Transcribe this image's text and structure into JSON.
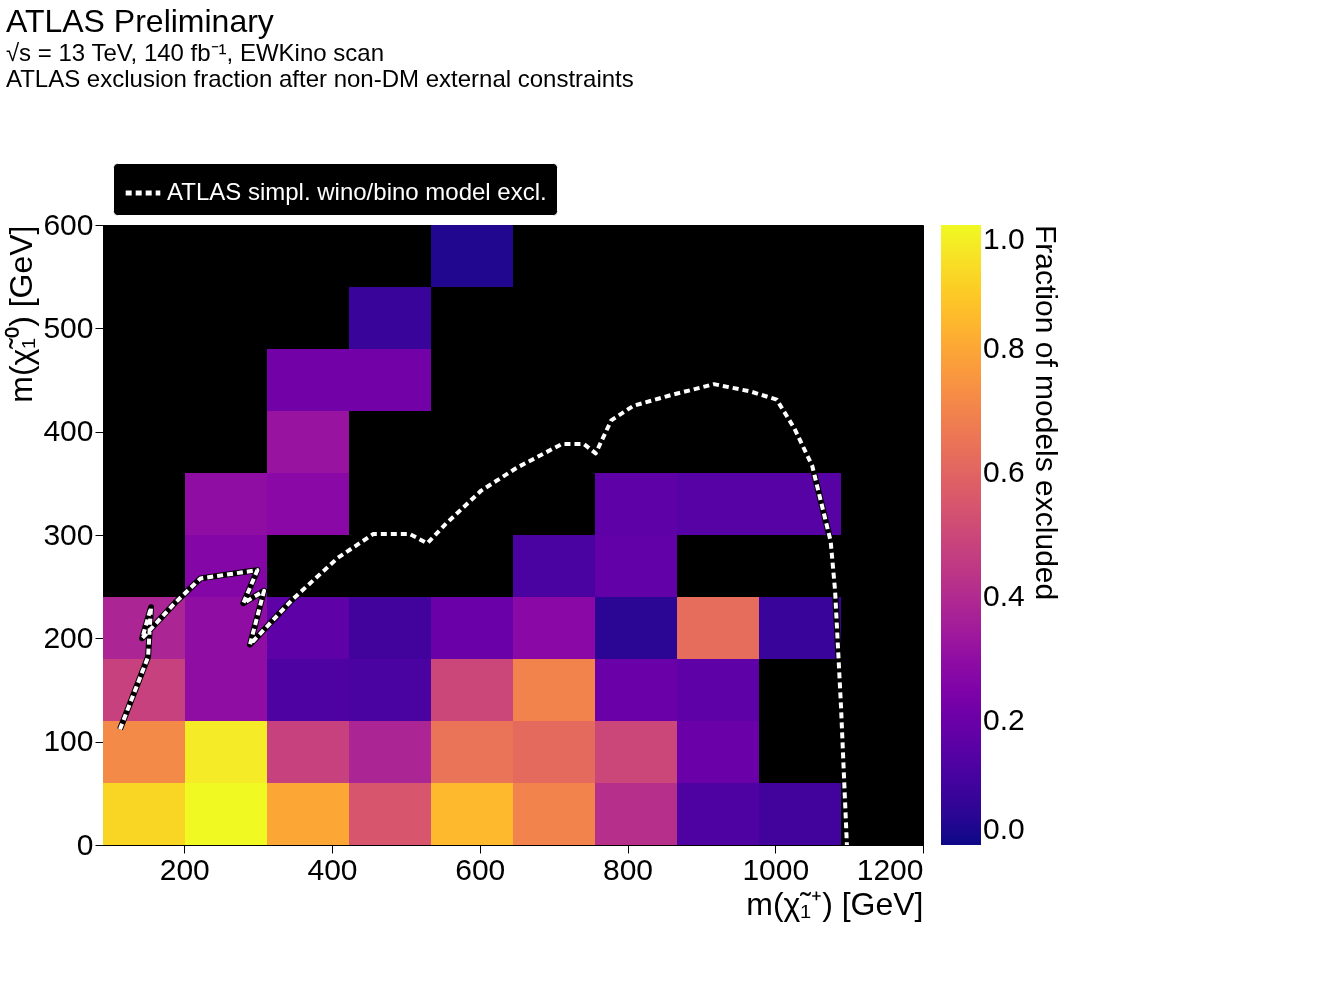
{
  "chart_data": {
    "type": "heatmap",
    "title": "ATLAS Preliminary",
    "subtitle": "√s = 13 TeV, 140 fb⁻¹, EWKino scan",
    "annotations": [
      "ATLAS exclusion fraction after non-DM external constraints"
    ],
    "xlabel": "m(χ̃₁⁺) [GeV]",
    "ylabel": "m(χ̃₁⁰) [GeV]",
    "clabel": "Fraction of models excluded",
    "xlim": [
      90,
      1200
    ],
    "xticks": [
      200,
      400,
      600,
      800,
      1000,
      1200
    ],
    "ylim": [
      0,
      600
    ],
    "yticks": [
      0,
      100,
      200,
      300,
      400,
      500,
      600
    ],
    "clim": [
      0,
      1
    ],
    "cticks": [
      {
        "value": 0,
        "label": "0.0"
      },
      0.2,
      0.4,
      0.6,
      0.8,
      {
        "value": 1,
        "label": "1.0"
      }
    ],
    "cells": [
      [
        null,
        null,
        null,
        null,
        0.03,
        null,
        null,
        null,
        null,
        null
      ],
      [
        null,
        null,
        null,
        0.08,
        null,
        null,
        null,
        null,
        null,
        null
      ],
      [
        null,
        null,
        0.22,
        0.22,
        null,
        null,
        null,
        null,
        null,
        null
      ],
      [
        null,
        null,
        0.32,
        null,
        null,
        null,
        null,
        null,
        null,
        null
      ],
      [
        null,
        0.3,
        0.28,
        null,
        null,
        null,
        0.17,
        0.15,
        0.15,
        null
      ],
      [
        null,
        0.27,
        null,
        null,
        null,
        0.12,
        0.18,
        null,
        null,
        null
      ],
      [
        0.38,
        0.3,
        0.17,
        0.1,
        0.2,
        0.28,
        0.05,
        0.63,
        0.08,
        null
      ],
      [
        0.48,
        0.3,
        0.13,
        0.12,
        0.5,
        0.7,
        0.2,
        0.17,
        null,
        null
      ],
      [
        0.72,
        0.97,
        0.48,
        0.38,
        0.65,
        0.62,
        0.5,
        0.2,
        null,
        null
      ],
      [
        0.92,
        1.0,
        0.8,
        0.55,
        0.85,
        0.7,
        0.42,
        0.13,
        0.1,
        null
      ]
    ],
    "series": [
      {
        "name": "ATLAS simpl. wino/bino model excl.",
        "type": "line",
        "color": "#ffffff",
        "line_style": "dashed",
        "x": [
          113,
          151,
          155,
          143,
          187,
          222,
          299,
          280,
          308,
          289,
          347,
          408,
          456,
          505,
          529,
          553,
          602,
          650,
          711,
          741,
          757,
          778,
          808,
          857,
          917,
          966,
          1002,
          1026,
          1050,
          1075,
          1081,
          1089,
          1097
        ],
        "values": [
          112,
          182,
          230,
          200,
          234,
          258,
          266,
          234,
          246,
          194,
          238,
          278,
          301,
          301,
          292,
          310,
          343,
          365,
          388,
          388,
          379,
          411,
          425,
          435,
          446,
          439,
          431,
          403,
          367,
          294,
          246,
          134,
          0
        ]
      }
    ],
    "legend": "top left"
  }
}
